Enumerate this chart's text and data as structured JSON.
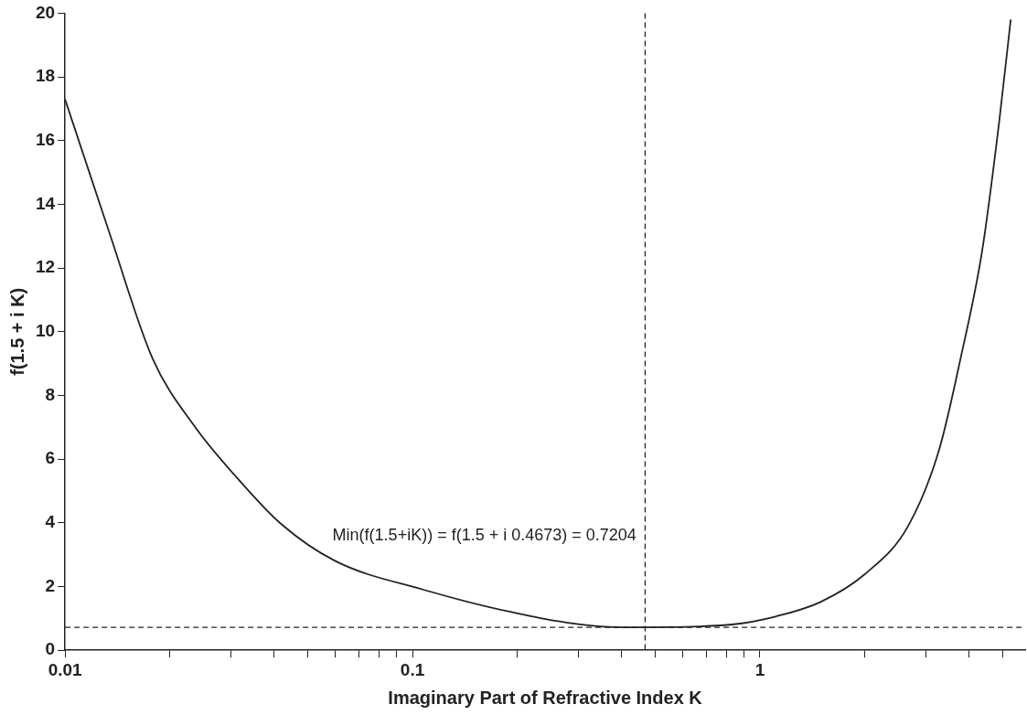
{
  "chart_data": {
    "type": "line",
    "xlabel": "Imaginary Part of Refractive Index K",
    "ylabel": "f(1.5 + i K)",
    "log": "x",
    "grid": false,
    "legend": false,
    "marker": "none",
    "line_style": "solid",
    "x": [
      0.01,
      0.01346,
      0.01786,
      0.0237,
      0.0314,
      0.0417,
      0.06,
      0.1076,
      0.1928,
      0.346,
      0.4673,
      0.831,
      1.11,
      1.49,
      2.0,
      2.67,
      3.28,
      3.78,
      4.36,
      4.88,
      5.27
    ],
    "series": [
      {
        "color": "#222222",
        "values": [
          17.3,
          13.06,
          9.16,
          7.0,
          5.39,
          3.98,
          2.8,
          1.9,
          1.2,
          0.75,
          0.7204,
          0.81,
          1.06,
          1.51,
          2.38,
          3.9,
          6.3,
          9.16,
          12.53,
          16.57,
          19.8
        ]
      }
    ],
    "xlim": [
      0.01,
      5.8
    ],
    "xticks": [
      0.01,
      {
        "value": 0.02,
        "label": null
      },
      {
        "value": 0.03,
        "label": null
      },
      {
        "value": 0.04,
        "label": null
      },
      {
        "value": 0.05,
        "label": null
      },
      {
        "value": 0.06,
        "label": null
      },
      {
        "value": 0.07,
        "label": null
      },
      {
        "value": 0.08,
        "label": null
      },
      {
        "value": 0.09,
        "label": null
      },
      0.1,
      {
        "value": 0.2,
        "label": null
      },
      {
        "value": 0.3,
        "label": null
      },
      {
        "value": 0.4,
        "label": null
      },
      {
        "value": 0.5,
        "label": null
      },
      {
        "value": 0.6,
        "label": null
      },
      {
        "value": 0.7,
        "label": null
      },
      {
        "value": 0.8,
        "label": null
      },
      {
        "value": 0.9,
        "label": null
      },
      1,
      {
        "value": 2,
        "label": null
      },
      {
        "value": 3,
        "label": null
      },
      {
        "value": 4,
        "label": null
      },
      {
        "value": 5,
        "label": null
      }
    ],
    "ylim": [
      0,
      20
    ],
    "yticks": [
      0,
      2,
      4,
      6,
      8,
      10,
      12,
      14,
      16,
      18,
      20
    ],
    "ref_lines": [
      {
        "axis": "y",
        "value": 0.7204,
        "color": "#222222",
        "line_style": "dashed"
      },
      {
        "axis": "x",
        "value": 0.4673,
        "color": "#222222",
        "line_style": "dashed"
      }
    ],
    "annotations": [
      "Min(f(1.5+iK)) = f(1.5 + i 0.4673) = 0.7204"
    ]
  }
}
